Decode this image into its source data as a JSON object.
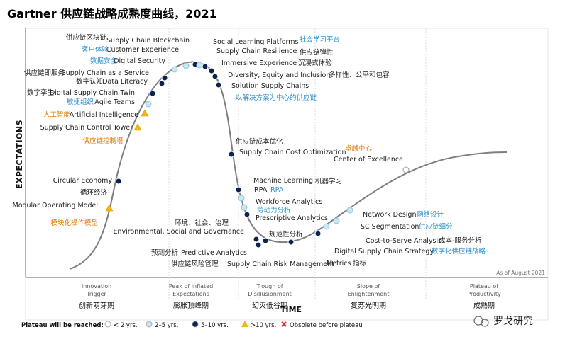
{
  "title": "Gartner 供应链战略成熟度曲线，2021",
  "chart_data": {
    "type": "hype-cycle",
    "title": "Gartner 供应链战略成熟度曲线，2021",
    "ylabel": "EXPECTATIONS",
    "xlabel": "TIME",
    "as_of": "As of August 2021",
    "phases": [
      {
        "en1": "Innovation",
        "en2": "Trigger",
        "cn": "创新萌芽期"
      },
      {
        "en1": "Peak of Inflated",
        "en2": "Expectations",
        "cn": "膨胀顶峰期"
      },
      {
        "en1": "Trough of",
        "en2": "Disillusionment",
        "cn": "幻灭低谷期"
      },
      {
        "en1": "Slope of",
        "en2": "Enlightenment",
        "cn": "复苏光明期"
      },
      {
        "en1": "Plateau of",
        "en2": "Productivity",
        "cn": "成熟期"
      }
    ],
    "legend": {
      "title": "Plateau will be reached:",
      "items": [
        {
          "key": "lt2",
          "label": "< 2 yrs.",
          "color": "#ffffff"
        },
        {
          "key": "2to5",
          "label": "2–5 yrs.",
          "color": "#c9e6f5"
        },
        {
          "key": "5to10",
          "label": "5–10 yrs.",
          "color": "#0b2350"
        },
        {
          "key": "gt10",
          "label": ">10 yrs.",
          "color": "#f2b707"
        },
        {
          "key": "obsolete",
          "label": "Obsolete before plateau",
          "color": "#e21d1d"
        }
      ]
    },
    "technologies": [
      {
        "en": "Modular Operating Model",
        "cn": "模块化操作模型",
        "plateau": "gt10"
      },
      {
        "en": "Circular Economy",
        "cn": "循环经济",
        "plateau": "5to10"
      },
      {
        "en": "Supply Chain Control Tower",
        "cn": "供应链控制塔",
        "plateau": "gt10"
      },
      {
        "en": "Artificial Intelligence",
        "cn": "人工智能",
        "plateau": "gt10"
      },
      {
        "en": "Agile Teams",
        "cn": "敏捷组织",
        "plateau": "2to5"
      },
      {
        "en": "Digital Supply Chain Twin",
        "cn": "数字孪生",
        "plateau": "5to10"
      },
      {
        "en": "Data Literacy",
        "cn": "数字认知",
        "plateau": "5to10"
      },
      {
        "en": "Supply Chain as a Service",
        "cn": "供应链即服务",
        "plateau": "5to10"
      },
      {
        "en": "Digital Security",
        "cn": "数据安全",
        "plateau": "2to5"
      },
      {
        "en": "Customer Experience",
        "cn": "客户体验",
        "plateau": "2to5"
      },
      {
        "en": "Supply Chain Blockchain",
        "cn": "供应链区块链",
        "plateau": "5to10"
      },
      {
        "en": "Social Learning Platforms",
        "cn": "社会学习平台",
        "plateau": "2to5"
      },
      {
        "en": "Supply Chain Resilience",
        "cn": "供应链弹性",
        "plateau": "5to10"
      },
      {
        "en": "Immersive Experience",
        "cn": "沉浸式体验",
        "plateau": "5to10"
      },
      {
        "en": "Diversity, Equity and Inclusion",
        "cn": "多样性、公平和包容",
        "plateau": "5to10"
      },
      {
        "en": "Solution Supply Chains",
        "cn": "以解决方案为中心的供应链",
        "plateau": "5to10"
      },
      {
        "en": "Supply Chain Cost Optimization",
        "cn": "供应链成本优化",
        "plateau": "5to10"
      },
      {
        "en": "Machine Learning",
        "cn": "机器学习",
        "plateau": "5to10"
      },
      {
        "en": "RPA",
        "cn": "RPA",
        "plateau": "2to5"
      },
      {
        "en": "Workforce Analytics",
        "cn": "劳动力分析",
        "plateau": "2to5"
      },
      {
        "en": "Prescriptive Analytics",
        "cn": "规范性分析",
        "plateau": "5to10"
      },
      {
        "en": "Environmental, Social and Governance",
        "cn": "环境、社会、治理",
        "plateau": "5to10"
      },
      {
        "en": "Predictive Analytics",
        "cn": "预测分析",
        "plateau": "5to10"
      },
      {
        "en": "Supply Chain Risk Management",
        "cn": "供应链风险管理",
        "plateau": "5to10"
      },
      {
        "en": "Metrics",
        "cn": "指标",
        "plateau": "5to10"
      },
      {
        "en": "Digital Supply Chain Strategy",
        "cn": "数字化供应链战略",
        "plateau": "5to10"
      },
      {
        "en": "Cost-to-Serve Analysis",
        "cn": "成本-服务分析",
        "plateau": "2to5"
      },
      {
        "en": "SC Segmentation",
        "cn": "供应链细分",
        "plateau": "2to5"
      },
      {
        "en": "Network Design",
        "cn": "网络设计",
        "plateau": "2to5"
      },
      {
        "en": "Center of Excellence",
        "cn": "卓越中心",
        "plateau": "lt2"
      }
    ]
  },
  "watermark": "罗戈研究"
}
